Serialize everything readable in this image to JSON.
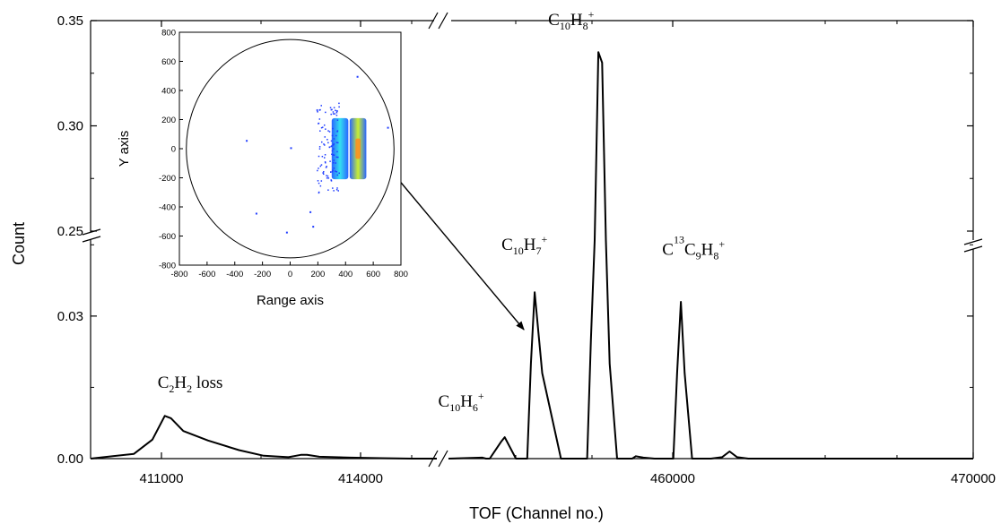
{
  "chart_data": [
    {
      "type": "line",
      "xlabel": "TOF (Channel no.)",
      "ylabel": "Count",
      "x_ticks": [
        "411000",
        "414000",
        "460000",
        "470000"
      ],
      "y_ticks_upper": [
        "0.25",
        "0.30",
        "0.35"
      ],
      "y_ticks_lower": [
        "0.00",
        "0.03"
      ],
      "x_segments": [
        [
          409800,
          415400
        ],
        [
          456000,
          470000
        ]
      ],
      "y_segments": {
        "lower": [
          0,
          0.046
        ],
        "upper": [
          0.25,
          0.35
        ]
      },
      "axis_breaks": {
        "x": true,
        "y": true
      },
      "grid": false,
      "series": [
        {
          "x": [
            409800,
            410500,
            410800,
            411000,
            411100,
            411300,
            411700,
            412200,
            412600,
            413000,
            413200,
            413300,
            413500,
            414000,
            414500,
            415000,
            415400,
            456000,
            456900,
            457000,
            457100,
            457400,
            457500,
            457800,
            458000,
            458100,
            458200,
            458300,
            458500,
            459000,
            459700,
            459800,
            459900,
            460000,
            460100,
            460200,
            460300,
            460500,
            460900,
            461000,
            461200,
            461500,
            461700,
            462000,
            462100,
            462200,
            462300,
            462500,
            463000,
            463300,
            463500,
            463700,
            464000,
            467000,
            470000
          ],
          "y": [
            0.0,
            0.001,
            0.004,
            0.009,
            0.0085,
            0.0058,
            0.0038,
            0.0018,
            0.0006,
            0.0003,
            0.0008,
            0.0008,
            0.0004,
            0.0002,
            0.0001,
            0.0,
            0.0,
            0.0,
            0.0002,
            0.0,
            0.0,
            0.0035,
            0.0045,
            0.0,
            0.0,
            0.0,
            0.02,
            0.035,
            0.018,
            0.0,
            0.0,
            0.025,
            0.046,
            0.335,
            0.33,
            0.046,
            0.02,
            0.0,
            0.0,
            0.0005,
            0.0002,
            0.0,
            0.0,
            0.0,
            0.018,
            0.033,
            0.018,
            0.0,
            0.0,
            0.0003,
            0.0015,
            0.0003,
            0.0,
            0.0,
            0.0
          ]
        }
      ],
      "annotations": [
        {
          "main": "C",
          "sub1": "2",
          "h": "H",
          "sub2": "2",
          "tail": " loss",
          "at_x": 411000,
          "at_y": 0.0115
        },
        {
          "main": "C",
          "sub1": "10",
          "h": "H",
          "sub2": "6",
          "sup": "+",
          "at_x": 457400,
          "at_y": 0.0075
        },
        {
          "main": "C",
          "sub1": "10",
          "h": "H",
          "sub2": "7",
          "sup": "+",
          "at_x": 458300,
          "at_y": 0.0405
        },
        {
          "main": "C",
          "sub1": "10",
          "h": "H",
          "sub2": "8",
          "sup": "+",
          "at_x": 460000,
          "at_y": 0.342
        },
        {
          "main": "C",
          "isotope": "13",
          "rest": "C",
          "sub1": "9",
          "h": "H",
          "sub2": "8",
          "sup": "+",
          "at_x": 462300,
          "at_y": 0.0395
        }
      ]
    },
    {
      "type": "heatmap",
      "xlabel": "Range axis",
      "ylabel": "Y axis",
      "xlim": [
        -800,
        800
      ],
      "ylim": [
        -800,
        800
      ],
      "x_ticks": [
        "-800",
        "-600",
        "-400",
        "-200",
        "0",
        "200",
        "400",
        "600",
        "800"
      ],
      "y_ticks": [
        "-800",
        "-600",
        "-400",
        "-200",
        "0",
        "200",
        "400",
        "600",
        "800"
      ],
      "detector_radius": 750,
      "clusters": [
        {
          "center": [
            360,
            0
          ],
          "width": 120,
          "height": 420,
          "color": "#2a66ff",
          "core": "#33e0f0"
        },
        {
          "center": [
            490,
            0
          ],
          "width": 120,
          "height": 420,
          "color": "#2a66ff",
          "core": "#c8ee33",
          "hot": "#ff8a1e"
        }
      ],
      "points": [
        [
          -320,
          60
        ],
        [
          0,
          10
        ],
        [
          -250,
          -440
        ],
        [
          -30,
          -570
        ],
        [
          140,
          -430
        ],
        [
          160,
          -530
        ],
        [
          480,
          500
        ],
        [
          700,
          150
        ]
      ]
    }
  ]
}
